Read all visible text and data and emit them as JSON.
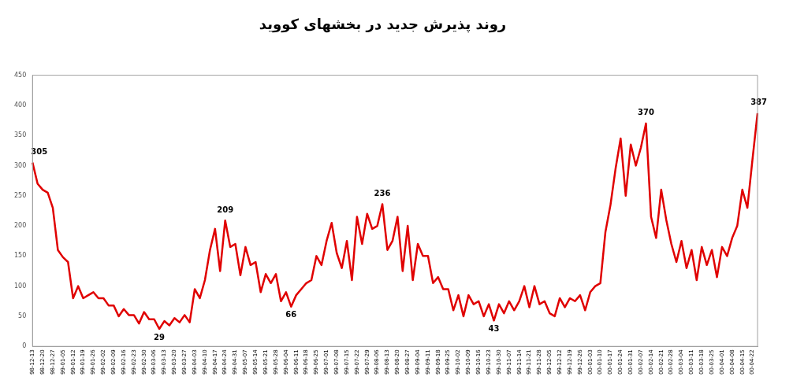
{
  "chart_data": {
    "type": "line",
    "title": "روند پذیرش جدید در بخشهای کووید",
    "categories": [
      "98-12-13",
      null,
      "98-12-20",
      null,
      "98-12-27",
      null,
      "99-01-05",
      null,
      "99-01-12",
      null,
      "99-01-19",
      null,
      "99-01-26",
      null,
      "99-02-02",
      null,
      "99-02-09",
      null,
      "99-02-16",
      null,
      "99-02-23",
      null,
      "99-02-30",
      null,
      "99-03-06",
      null,
      "99-03-13",
      null,
      "99-03-20",
      null,
      "99-03-27",
      null,
      "99-04-03",
      null,
      "99-04-10",
      null,
      "99-04-17",
      null,
      "99-04-24",
      null,
      "99-04-31",
      null,
      "99-05-07",
      null,
      "99-05-14",
      null,
      "99-05-21",
      null,
      "99-05-28",
      null,
      "99-06-04",
      null,
      "99-06-11",
      null,
      "99-06-18",
      null,
      "99-06-25",
      null,
      "99-07-01",
      null,
      "99-07-08",
      null,
      "99-07-15",
      null,
      "99-07-22",
      null,
      "99-07-29",
      null,
      "99-08-06",
      null,
      "99-08-13",
      null,
      "99-08-20",
      null,
      "99-08-27",
      null,
      "99-09-04",
      null,
      "99-09-11",
      null,
      "99-09-18",
      null,
      "99-09-25",
      null,
      "99-10-02",
      null,
      "99-10-09",
      null,
      "99-10-16",
      null,
      "99-10-23",
      null,
      "99-10-30",
      null,
      "99-11-07",
      null,
      "99-11-14",
      null,
      "99-11-21",
      null,
      "99-11-28",
      null,
      "99-12-05",
      null,
      "99-12-12",
      null,
      "99-12-19",
      null,
      "99-12-26",
      null,
      "00-01-03",
      null,
      "00-01-10",
      null,
      "00-01-17",
      null,
      "00-01-24",
      null,
      "00-01-31",
      null,
      "00-02-07",
      null,
      "00-02-14",
      null,
      "00-02-21",
      null,
      "00-02-28",
      null,
      "00-03-04",
      null,
      "00-03-11",
      null,
      "00-03-18",
      null,
      "00-03-25",
      null,
      "00-04-01",
      null,
      "00-04-08",
      null,
      "00-04-15",
      null,
      "00-04-22",
      null
    ],
    "values": [
      305,
      270,
      260,
      255,
      230,
      160,
      148,
      140,
      80,
      100,
      80,
      85,
      90,
      80,
      80,
      68,
      68,
      50,
      62,
      52,
      52,
      38,
      57,
      45,
      45,
      29,
      42,
      35,
      47,
      40,
      52,
      40,
      95,
      80,
      110,
      160,
      195,
      125,
      209,
      165,
      170,
      118,
      165,
      135,
      140,
      90,
      120,
      105,
      120,
      75,
      90,
      66,
      85,
      95,
      105,
      110,
      150,
      135,
      175,
      205,
      155,
      130,
      175,
      110,
      215,
      170,
      220,
      195,
      200,
      236,
      160,
      175,
      215,
      125,
      200,
      110,
      170,
      150,
      150,
      105,
      115,
      95,
      95,
      60,
      85,
      50,
      85,
      70,
      75,
      50,
      70,
      43,
      70,
      55,
      75,
      60,
      75,
      100,
      65,
      100,
      70,
      75,
      55,
      50,
      80,
      65,
      80,
      75,
      85,
      60,
      90,
      100,
      105,
      190,
      235,
      295,
      345,
      250,
      335,
      300,
      330,
      370,
      215,
      180,
      260,
      210,
      170,
      140,
      175,
      130,
      160,
      110,
      165,
      135,
      160,
      115,
      165,
      150,
      180,
      200,
      260,
      230,
      310,
      387
    ],
    "value_labels": [
      "305",
      null,
      null,
      null,
      null,
      null,
      null,
      null,
      null,
      null,
      null,
      null,
      null,
      null,
      null,
      null,
      null,
      null,
      null,
      null,
      null,
      null,
      null,
      null,
      null,
      "29",
      null,
      null,
      null,
      null,
      null,
      null,
      null,
      null,
      null,
      null,
      null,
      null,
      "209",
      null,
      null,
      null,
      null,
      null,
      null,
      null,
      null,
      null,
      null,
      null,
      null,
      "66",
      null,
      null,
      null,
      null,
      null,
      null,
      null,
      null,
      null,
      null,
      null,
      null,
      null,
      null,
      null,
      null,
      null,
      "236",
      null,
      null,
      null,
      null,
      null,
      null,
      null,
      null,
      null,
      null,
      null,
      null,
      null,
      null,
      null,
      null,
      null,
      null,
      null,
      null,
      null,
      "43",
      null,
      null,
      null,
      null,
      null,
      null,
      null,
      null,
      null,
      null,
      null,
      null,
      null,
      null,
      null,
      null,
      null,
      null,
      null,
      null,
      null,
      null,
      null,
      null,
      null,
      null,
      null,
      null,
      null,
      "370",
      null,
      null,
      null,
      null,
      null,
      null,
      null,
      null,
      null,
      null,
      null,
      null,
      null,
      null,
      null,
      null,
      null,
      null,
      null,
      null,
      null,
      "387"
    ],
    "color": "#e00000",
    "ylim": [
      0,
      450
    ],
    "yticks": [
      0,
      50,
      100,
      150,
      200,
      250,
      300,
      350,
      400,
      450
    ],
    "grid": false,
    "legend": false,
    "marker": "none"
  }
}
